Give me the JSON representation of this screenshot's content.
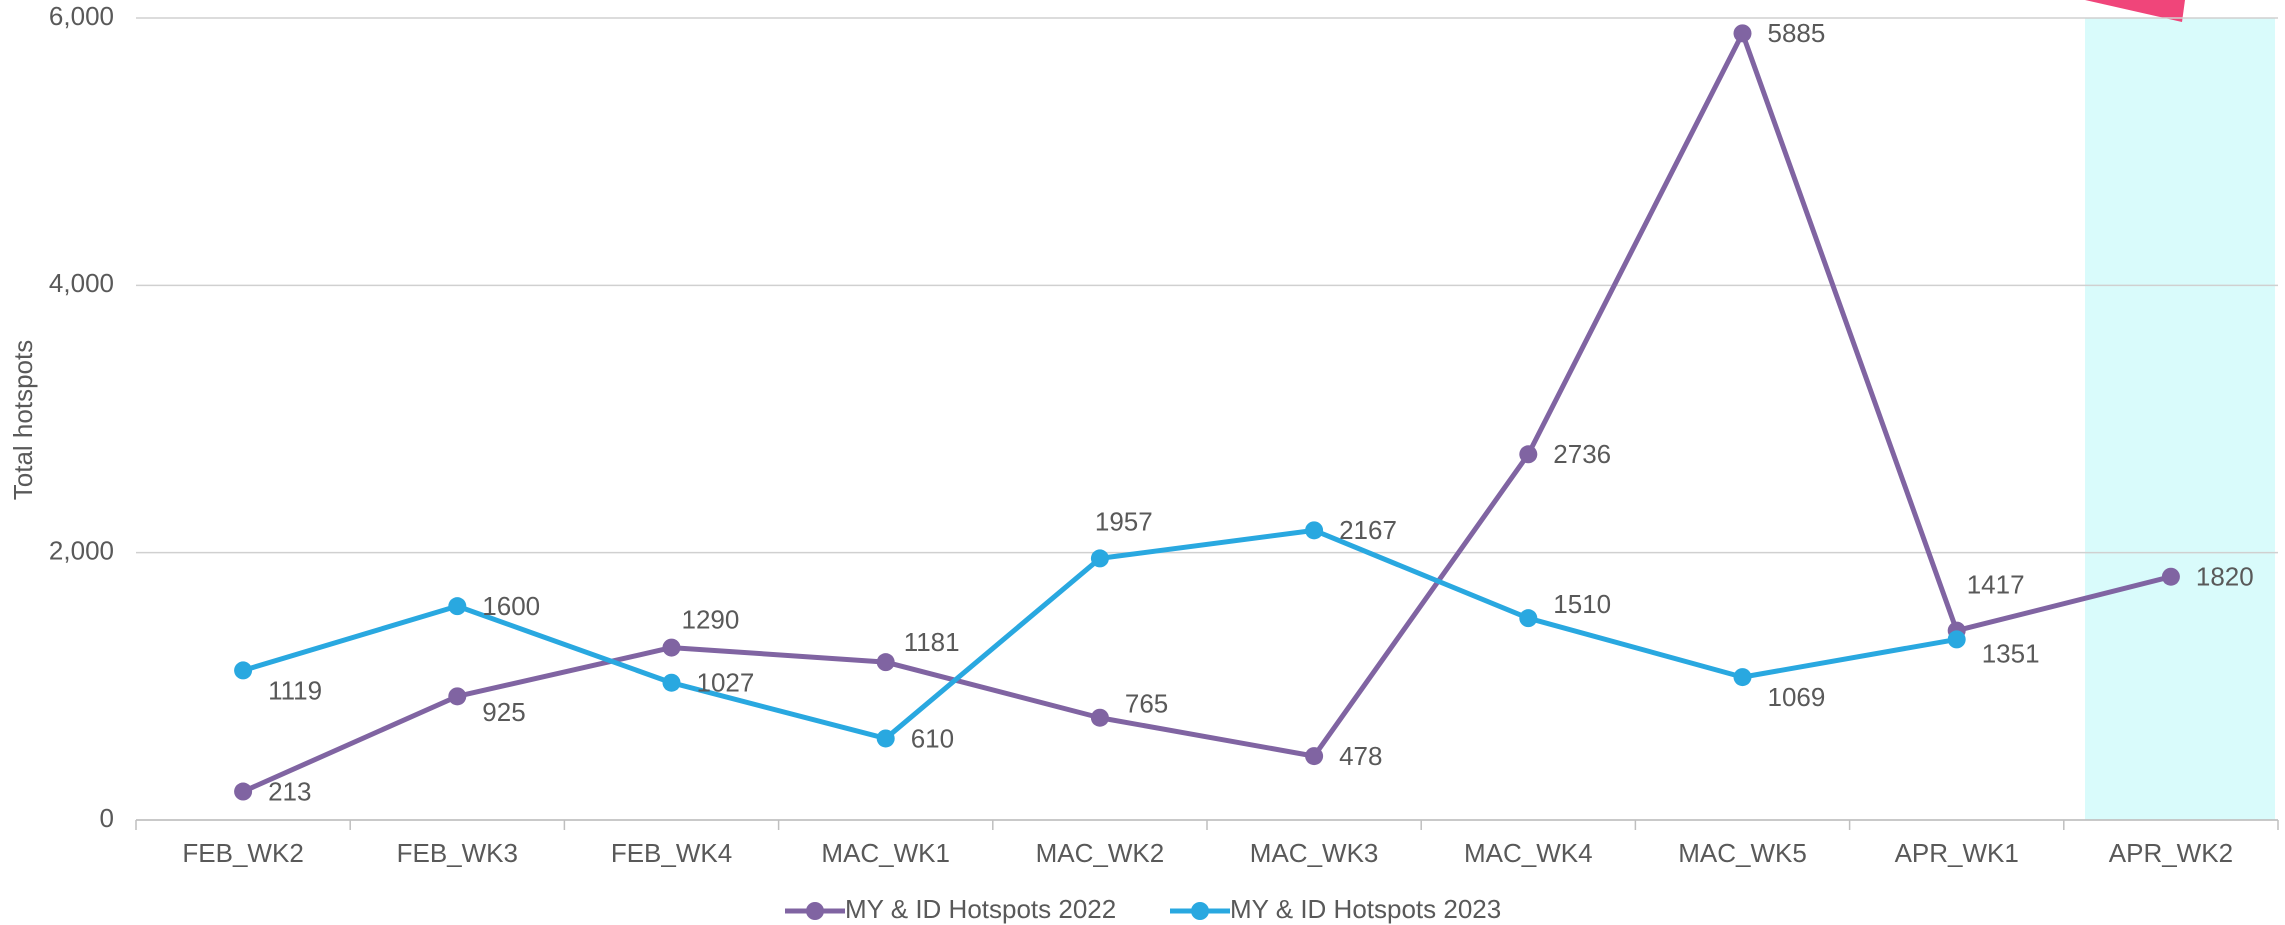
{
  "chart_data": {
    "type": "line",
    "y_label": "Total hotspots",
    "categories": [
      "FEB_WK2",
      "FEB_WK3",
      "FEB_WK4",
      "MAC_WK1",
      "MAC_WK2",
      "MAC_WK3",
      "MAC_WK4",
      "MAC_WK5",
      "APR_WK1",
      "APR_WK2"
    ],
    "series": [
      {
        "name": "MY & ID Hotspots 2022",
        "color": "#8064a2",
        "values": [
          213,
          925,
          1290,
          1181,
          765,
          478,
          2736,
          5885,
          1417,
          1820
        ]
      },
      {
        "name": "MY & ID Hotspots 2023",
        "color": "#29a8e0",
        "values": [
          1119,
          1600,
          1027,
          610,
          1957,
          2167,
          1510,
          1069,
          1351,
          null
        ]
      }
    ],
    "ylim": [
      0,
      6000
    ],
    "yticks": [
      0,
      {
        "value": 2000,
        "label": "2,000"
      },
      {
        "value": 4000,
        "label": "4,000"
      },
      {
        "value": 6000,
        "label": "6,000"
      }
    ],
    "grid": true,
    "legend": "bottom"
  }
}
